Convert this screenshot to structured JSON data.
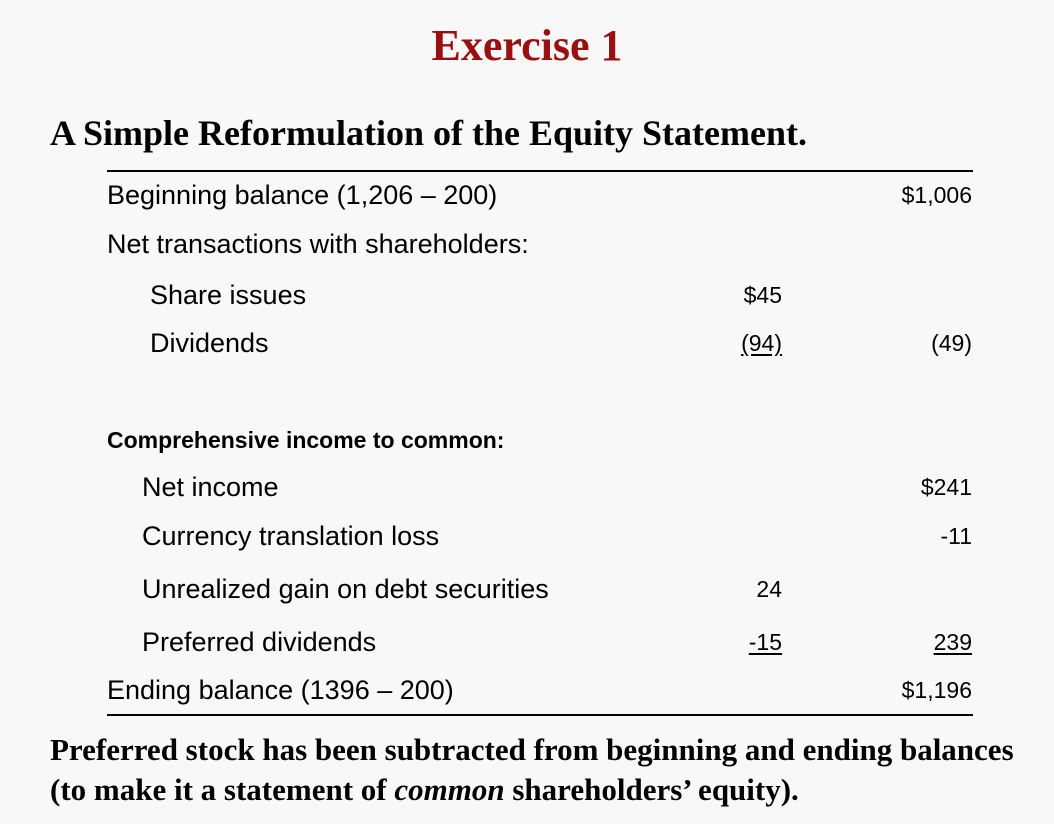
{
  "title": "Exercise 1",
  "subtitle": "A Simple Reformulation of the Equity Statement.",
  "rows": [
    {
      "label": "Beginning balance (1,206 – 200)",
      "mid": "",
      "total": "$1,006"
    },
    {
      "label": "Net transactions with shareholders:",
      "mid": "",
      "total": ""
    },
    {
      "label": "Share issues",
      "mid": "$45",
      "total": ""
    },
    {
      "label": "Dividends",
      "mid": "(94)",
      "total": "(49)"
    },
    {
      "label": "Comprehensive income to common:",
      "mid": "",
      "total": ""
    },
    {
      "label": "Net income",
      "mid": "",
      "total": "$241"
    },
    {
      "label": "Currency translation loss",
      "mid": "",
      "total": "-11"
    },
    {
      "label": "Unrealized gain on debt securities",
      "mid": "24",
      "total": ""
    },
    {
      "label": "Preferred dividends",
      "mid": "-15",
      "total": "239"
    },
    {
      "label": "Ending balance (1396 – 200)",
      "mid": "",
      "total": "$1,196"
    }
  ],
  "note": {
    "part1": "Preferred stock has been subtracted from beginning and ending balances (to make it a statement of ",
    "emphasis": "common",
    "part2": " shareholders’ equity)."
  }
}
